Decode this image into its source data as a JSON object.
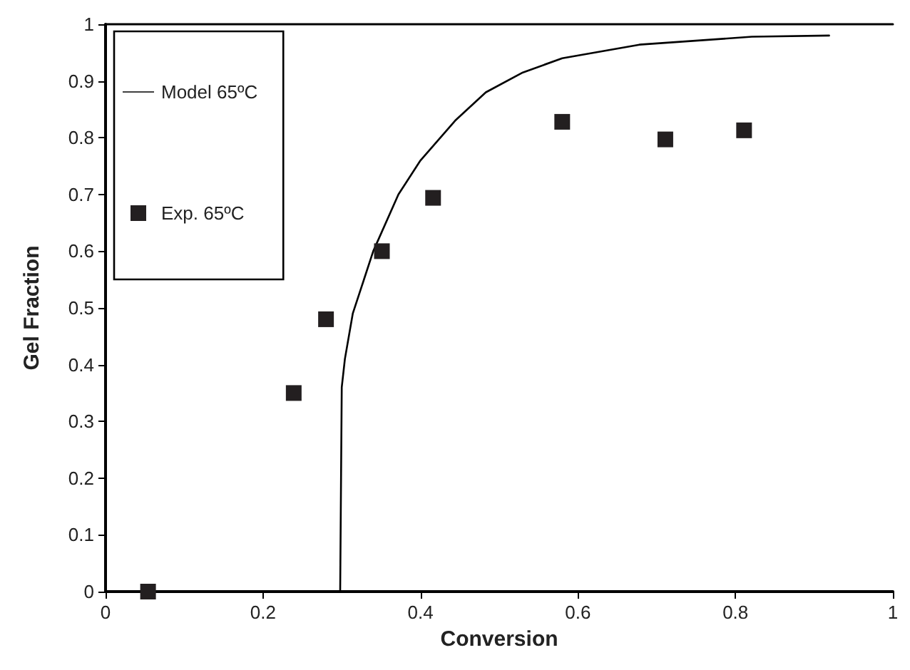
{
  "chart_data": {
    "type": "scatter",
    "xlabel": "Conversion",
    "ylabel": "Gel Fraction",
    "xlim": [
      0,
      1
    ],
    "xticks": [
      0,
      0.2,
      0.4,
      0.6,
      0.8,
      1
    ],
    "ylim": [
      0,
      1
    ],
    "yticks": [
      0,
      0.1,
      0.2,
      0.3,
      0.4,
      0.5,
      0.6,
      0.7,
      0.8,
      0.9,
      1
    ],
    "grid": false,
    "legend": "top left",
    "series": [
      {
        "name": "Model 65ºC",
        "type": "line",
        "color": "#000000",
        "marker": "none",
        "line_style": "solid",
        "x": [
          0.298,
          0.3,
          0.304,
          0.314,
          0.34,
          0.372,
          0.4,
          0.444,
          0.483,
          0.53,
          0.58,
          0.678,
          0.821,
          0.919
        ],
        "values": [
          0,
          0.36,
          0.41,
          0.49,
          0.6,
          0.7,
          0.76,
          0.83,
          0.88,
          0.915,
          0.94,
          0.964,
          0.978,
          0.98
        ]
      },
      {
        "name": "Exp. 65ºC",
        "type": "scatter",
        "color": "#231f20",
        "marker": "square",
        "x": [
          0.054,
          0.239,
          0.28,
          0.351,
          0.416,
          0.58,
          0.711,
          0.811
        ],
        "values": [
          0,
          0.35,
          0.48,
          0.6,
          0.694,
          0.828,
          0.797,
          0.813
        ]
      }
    ]
  }
}
